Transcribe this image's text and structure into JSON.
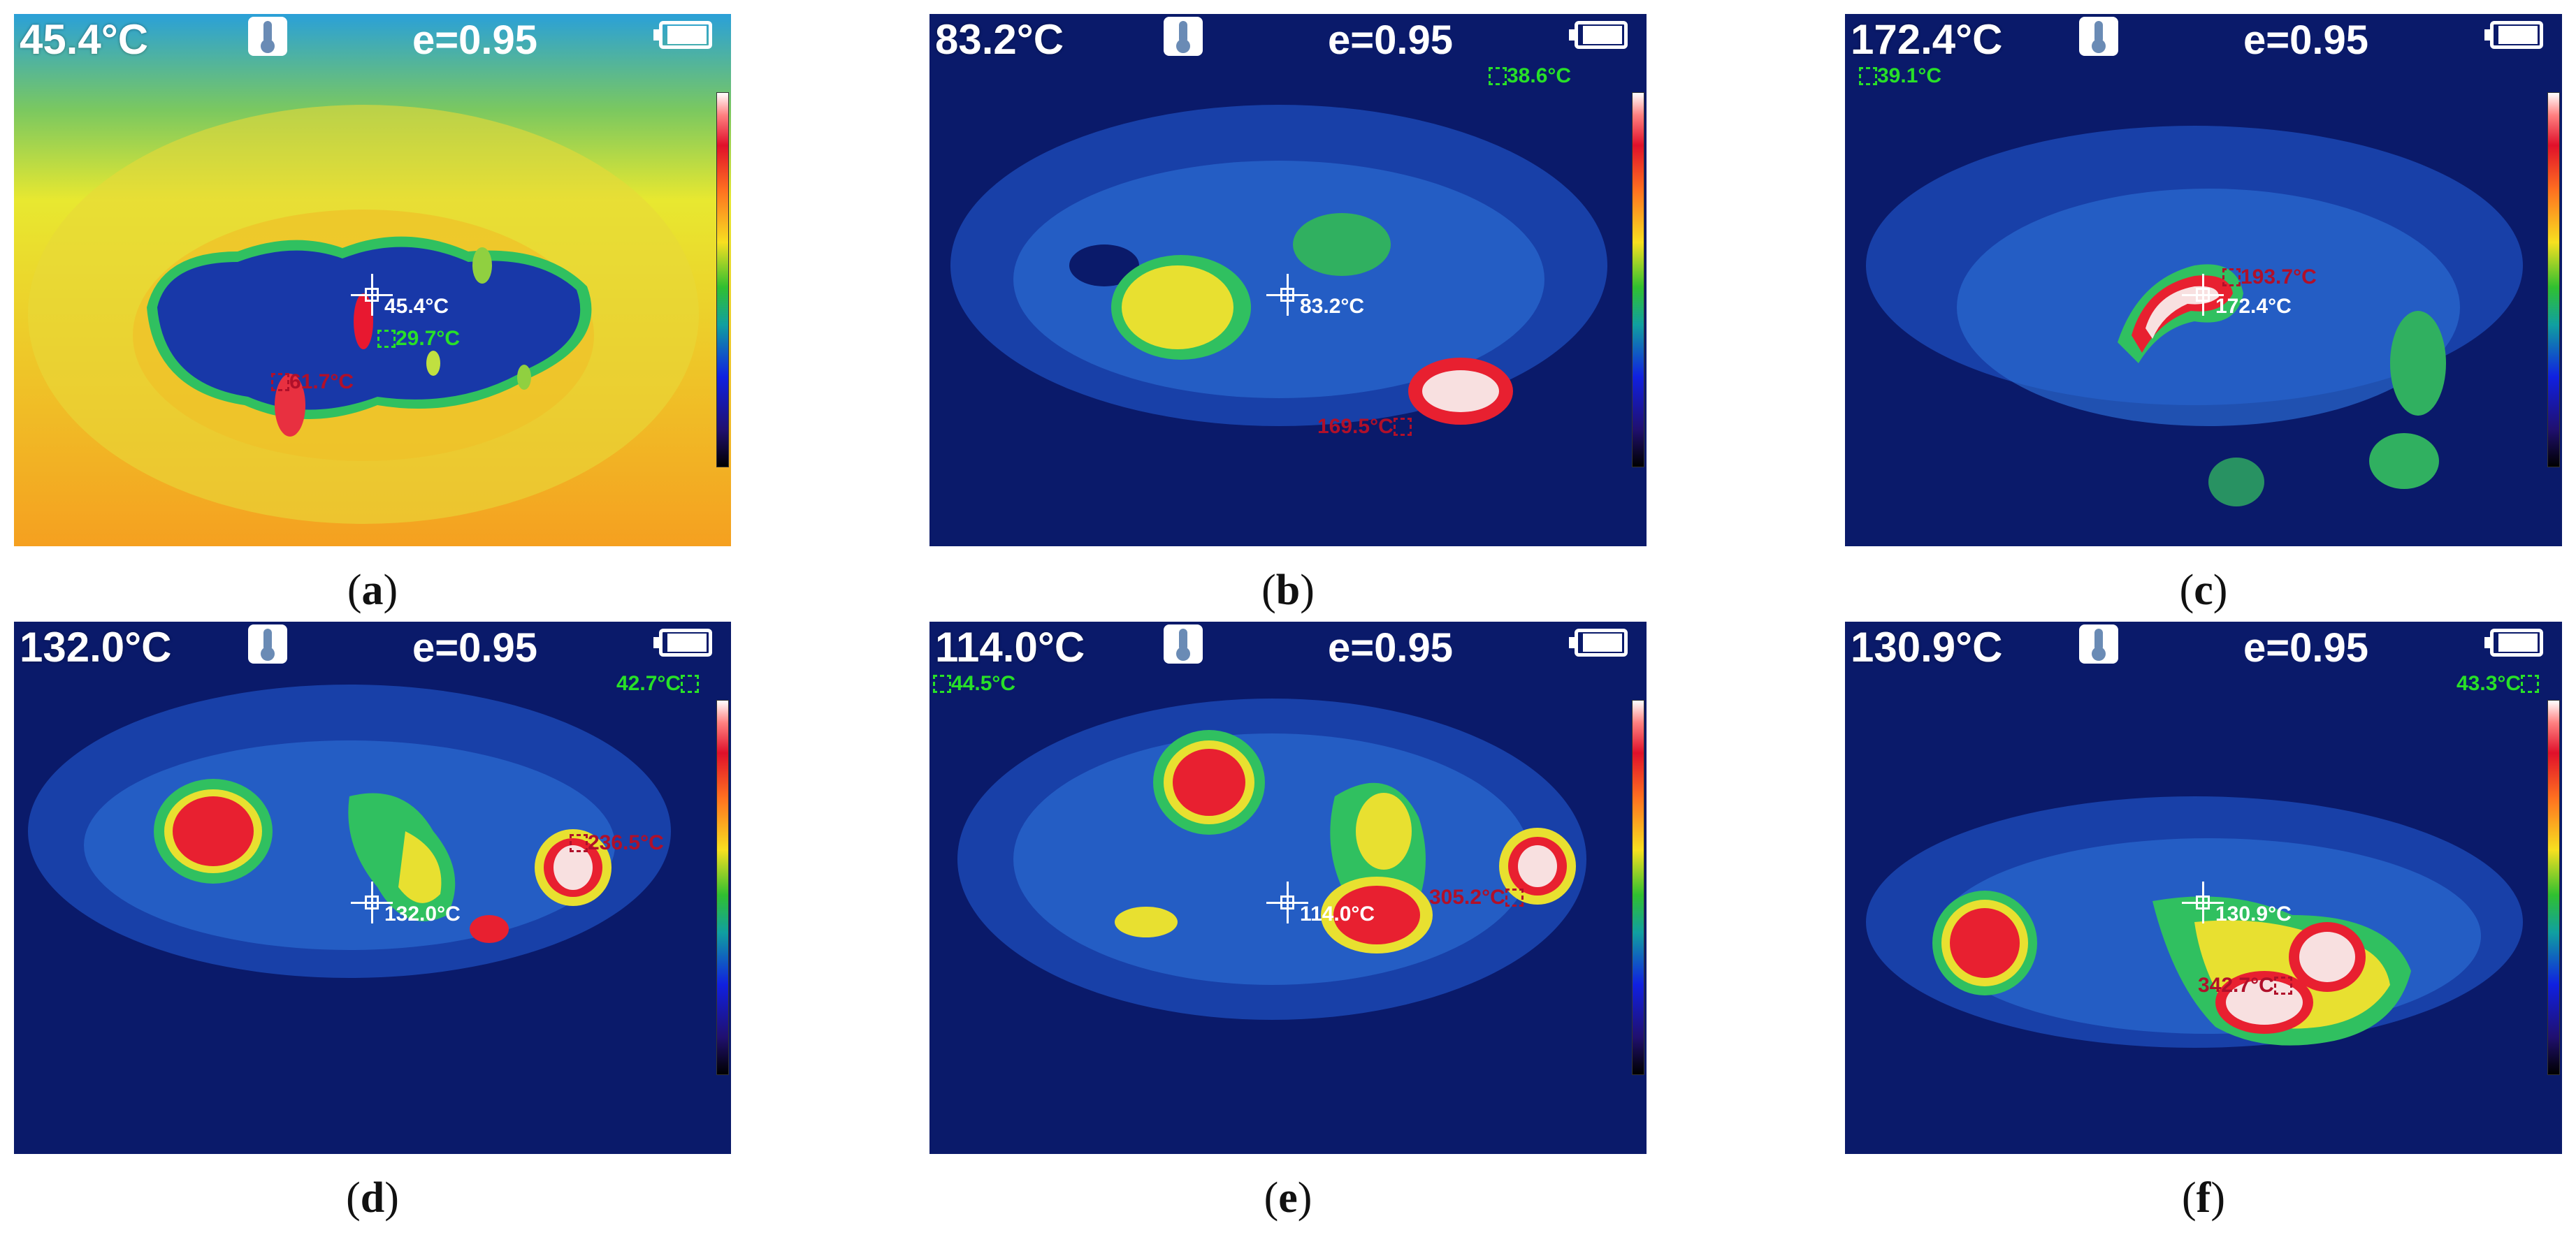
{
  "panels": [
    {
      "id": "a",
      "caption_letter": "a",
      "main_temp": "45.4°C",
      "emissivity": "e=0.95",
      "cross_label": "45.4°C",
      "min_label": "29.7°C",
      "max_label": "61.7°C",
      "palette": "hot"
    },
    {
      "id": "b",
      "caption_letter": "b",
      "main_temp": "83.2°C",
      "emissivity": "e=0.95",
      "cross_label": "83.2°C",
      "min_label": "38.6°C",
      "max_label": "169.5°C",
      "palette": "cold"
    },
    {
      "id": "c",
      "caption_letter": "c",
      "main_temp": "172.4°C",
      "emissivity": "e=0.95",
      "cross_label": "172.4°C",
      "min_label": "39.1°C",
      "max_label": "193.7°C",
      "palette": "cold"
    },
    {
      "id": "d",
      "caption_letter": "d",
      "main_temp": "132.0°C",
      "emissivity": "e=0.95",
      "cross_label": "132.0°C",
      "min_label": "42.7°C",
      "max_label": "236.5°C",
      "palette": "cold"
    },
    {
      "id": "e",
      "caption_letter": "e",
      "main_temp": "114.0°C",
      "emissivity": "e=0.95",
      "cross_label": "114.0°C",
      "min_label": "44.5°C",
      "max_label": "305.2°C",
      "palette": "cold"
    },
    {
      "id": "f",
      "caption_letter": "f",
      "main_temp": "130.9°C",
      "emissivity": "e=0.95",
      "cross_label": "130.9°C",
      "min_label": "43.3°C",
      "max_label": "342.7°C",
      "palette": "cold"
    }
  ],
  "icons": {
    "thermometer": "thermometer-icon",
    "battery": "battery-icon",
    "crosshair": "crosshair-icon"
  }
}
